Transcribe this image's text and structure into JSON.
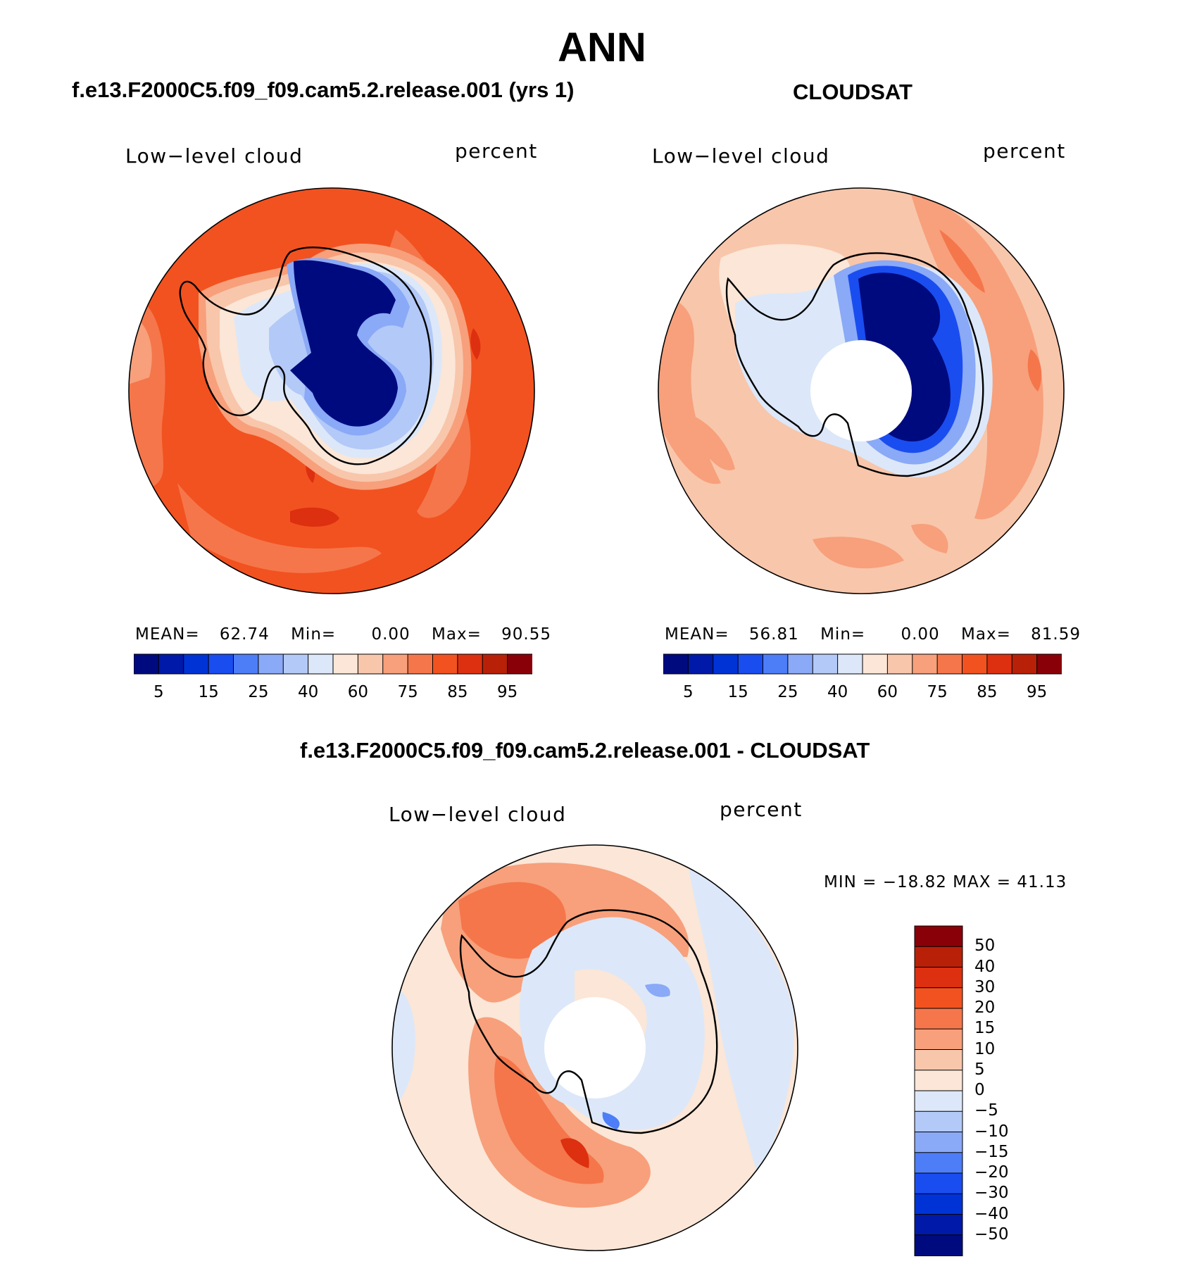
{
  "figure_title": "ANN",
  "panels": {
    "model": {
      "title": "f.e13.F2000C5.f09_f09.cam5.2.release.001 (yrs 1)",
      "field_label": "Low−level cloud",
      "units_label": "percent",
      "stats": {
        "mean": "62.74",
        "min": "0.00",
        "max": "90.55",
        "mean_label": "MEAN=",
        "min_label": "Min=",
        "max_label": "Max="
      }
    },
    "obs": {
      "title": "CLOUDSAT",
      "field_label": "Low−level cloud",
      "units_label": "percent",
      "stats": {
        "mean": "56.81",
        "min": "0.00",
        "max": "81.59",
        "mean_label": "MEAN=",
        "min_label": "Min=",
        "max_label": "Max="
      }
    },
    "diff": {
      "title": "f.e13.F2000C5.f09_f09.cam5.2.release.001 - CLOUDSAT",
      "field_label": "Low−level cloud",
      "units_label": "percent",
      "range_text": "MIN = −18.82 MAX =   41.13"
    }
  },
  "colorbars": {
    "abs": {
      "colors": [
        "#000a7f",
        "#0019a8",
        "#0033d6",
        "#1a4df0",
        "#4d7df7",
        "#8aa9f7",
        "#b3c9f7",
        "#dce8f9",
        "#fbe6d7",
        "#f8c6ab",
        "#f7a07b",
        "#f5764b",
        "#f25220",
        "#dc3010",
        "#b82108",
        "#8a0008"
      ],
      "tick_labels": [
        "5",
        "15",
        "25",
        "40",
        "60",
        "75",
        "85",
        "95"
      ]
    },
    "diff": {
      "colors": [
        "#000a7f",
        "#0019a8",
        "#0033d6",
        "#1a4df0",
        "#4d7df7",
        "#8aa9f7",
        "#b3c9f7",
        "#dce8f9",
        "#fbe6d7",
        "#f8c6ab",
        "#f7a07b",
        "#f5764b",
        "#f25220",
        "#dc3010",
        "#b82108",
        "#8a0008"
      ],
      "tick_labels": [
        "50",
        "40",
        "30",
        "20",
        "15",
        "10",
        "5",
        "0",
        "−5",
        "−10",
        "−15",
        "−20",
        "−30",
        "−40",
        "−50"
      ]
    }
  },
  "colors": {
    "ocean_model": "#f25220",
    "ocean_obs": "#f8c6ab",
    "ice_deep": "#000a7f",
    "diff_ocean": "#f8c6ab"
  }
}
